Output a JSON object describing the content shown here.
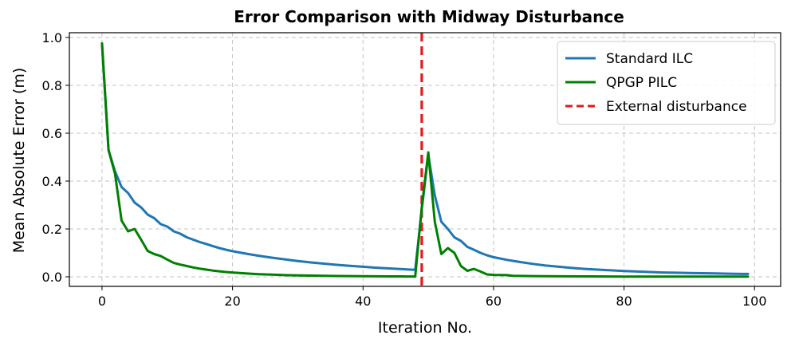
{
  "chart_data": {
    "type": "line",
    "title": "Error Comparison with Midway Disturbance",
    "xlabel": "Iteration No.",
    "ylabel": "Mean Absolute Error (m)",
    "xlim": [
      -5,
      104
    ],
    "ylim": [
      -0.04,
      1.02
    ],
    "xticks": [
      0,
      20,
      40,
      60,
      80,
      100
    ],
    "yticks": [
      0.0,
      0.2,
      0.4,
      0.6,
      0.8,
      1.0
    ],
    "xtick_labels": [
      "0",
      "20",
      "40",
      "60",
      "80",
      "100"
    ],
    "ytick_labels": [
      "0.0",
      "0.2",
      "0.4",
      "0.6",
      "0.8",
      "1.0"
    ],
    "grid": true,
    "legend_position": "top-right",
    "series": [
      {
        "name": "Standard ILC",
        "color": "#1f77b4",
        "x": [
          0,
          1,
          2,
          3,
          4,
          5,
          6,
          7,
          8,
          9,
          10,
          11,
          12,
          13,
          14,
          15,
          16,
          17,
          18,
          19,
          20,
          22,
          24,
          26,
          28,
          30,
          32,
          34,
          36,
          38,
          40,
          42,
          44,
          46,
          48,
          49,
          50,
          51,
          52,
          53,
          54,
          55,
          56,
          57,
          58,
          59,
          60,
          62,
          64,
          66,
          68,
          70,
          72,
          74,
          76,
          78,
          80,
          82,
          84,
          86,
          88,
          90,
          92,
          94,
          96,
          98,
          99
        ],
        "y": [
          0.975,
          0.53,
          0.44,
          0.375,
          0.35,
          0.31,
          0.29,
          0.26,
          0.245,
          0.22,
          0.21,
          0.19,
          0.18,
          0.165,
          0.155,
          0.145,
          0.137,
          0.128,
          0.12,
          0.113,
          0.107,
          0.097,
          0.088,
          0.08,
          0.073,
          0.066,
          0.06,
          0.055,
          0.05,
          0.046,
          0.042,
          0.038,
          0.035,
          0.032,
          0.029,
          0.28,
          0.51,
          0.34,
          0.23,
          0.2,
          0.165,
          0.15,
          0.125,
          0.113,
          0.1,
          0.09,
          0.082,
          0.071,
          0.062,
          0.054,
          0.047,
          0.042,
          0.037,
          0.033,
          0.03,
          0.027,
          0.024,
          0.022,
          0.02,
          0.018,
          0.017,
          0.016,
          0.015,
          0.014,
          0.013,
          0.012,
          0.012
        ]
      },
      {
        "name": "QPGP PILC",
        "color": "#008000",
        "x": [
          0,
          1,
          2,
          3,
          4,
          5,
          6,
          7,
          8,
          9,
          10,
          11,
          12,
          13,
          14,
          15,
          16,
          17,
          18,
          19,
          20,
          22,
          24,
          26,
          28,
          30,
          32,
          34,
          36,
          38,
          40,
          42,
          44,
          46,
          48,
          49,
          50,
          51,
          52,
          53,
          54,
          55,
          56,
          57,
          58,
          59,
          60,
          62,
          63,
          66,
          70,
          75,
          80,
          85,
          90,
          95,
          99
        ],
        "y": [
          0.975,
          0.53,
          0.43,
          0.235,
          0.19,
          0.2,
          0.155,
          0.108,
          0.095,
          0.087,
          0.072,
          0.058,
          0.051,
          0.045,
          0.039,
          0.034,
          0.03,
          0.026,
          0.023,
          0.02,
          0.018,
          0.014,
          0.011,
          0.009,
          0.007,
          0.006,
          0.005,
          0.004,
          0.0035,
          0.003,
          0.0025,
          0.002,
          0.0018,
          0.0015,
          0.0012,
          0.29,
          0.52,
          0.23,
          0.095,
          0.12,
          0.1,
          0.045,
          0.025,
          0.033,
          0.022,
          0.01,
          0.008,
          0.007,
          0.004,
          0.003,
          0.002,
          0.0015,
          0.001,
          0.001,
          0.001,
          0.001,
          0.001
        ]
      }
    ],
    "annotations": [
      {
        "type": "vline",
        "name": "External disturbance",
        "x": 49,
        "color": "#e41a1c",
        "style": "dashed"
      }
    ]
  }
}
